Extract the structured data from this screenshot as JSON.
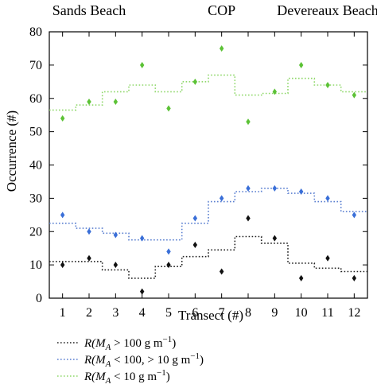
{
  "chart_data": {
    "type": "scatter",
    "xlabel": "Transect (#)",
    "ylabel": "Occurrence (#)",
    "xlim": [
      0.5,
      12.5
    ],
    "ylim": [
      0,
      80
    ],
    "xticks": [
      1,
      2,
      3,
      4,
      5,
      6,
      7,
      8,
      9,
      10,
      11,
      12
    ],
    "yticks": [
      0,
      10,
      20,
      30,
      40,
      50,
      60,
      70,
      80
    ],
    "grid": false,
    "annotations": [
      {
        "text": "Sands Beach",
        "x": 2
      },
      {
        "text": "COP",
        "x": 7
      },
      {
        "text": "Devereaux Beach",
        "x": 11
      }
    ],
    "points": [
      {
        "color": "#111111",
        "x": [
          1,
          2,
          3,
          4,
          5,
          6,
          7,
          8,
          9,
          10,
          11,
          12
        ],
        "y": [
          10,
          12,
          10,
          2,
          10,
          16,
          8,
          24,
          18,
          6,
          12,
          6
        ]
      },
      {
        "color": "#3a6fd8",
        "x": [
          1,
          2,
          3,
          4,
          5,
          6,
          7,
          8,
          9,
          10,
          11,
          12
        ],
        "y": [
          25,
          20,
          19,
          18,
          14,
          24,
          30,
          33,
          33,
          32,
          30,
          25
        ]
      },
      {
        "color": "#5cc236",
        "x": [
          1,
          2,
          3,
          4,
          5,
          6,
          7,
          8,
          9,
          10,
          11,
          12
        ],
        "y": [
          54,
          59,
          59,
          70,
          57,
          65,
          75,
          53,
          62,
          70,
          64,
          61
        ]
      }
    ],
    "series": [
      {
        "name": "R(M_A > 100 g m^-1)",
        "label_parts": [
          "R(",
          "M",
          "A",
          " > 100 g m",
          "−1",
          ")"
        ],
        "color": "#222222",
        "style": "dotted-step",
        "x": [
          1,
          2,
          3,
          4,
          5,
          6,
          7,
          8,
          9,
          10,
          11,
          12
        ],
        "y": [
          11,
          11,
          8.5,
          6,
          9.5,
          12.5,
          14.5,
          18.5,
          16.5,
          10.5,
          9,
          8
        ]
      },
      {
        "name": "R(M_A < 100, > 10 g m^-1)",
        "label_parts": [
          "R(",
          "M",
          "A",
          " < 100, > 10 g m",
          "−1",
          ")"
        ],
        "color": "#5a7fd0",
        "style": "dotted-step",
        "x": [
          1,
          2,
          3,
          4,
          5,
          6,
          7,
          8,
          9,
          10,
          11,
          12
        ],
        "y": [
          22.5,
          21,
          19.5,
          17.5,
          17.5,
          22.5,
          29,
          32,
          33,
          31.5,
          29,
          26
        ]
      },
      {
        "name": "R(M_A < 10 g m^-1)",
        "label_parts": [
          "R(",
          "M",
          "A",
          " < 10 g m",
          "−1",
          ")"
        ],
        "color": "#8fd86a",
        "style": "dotted-step",
        "x": [
          1,
          2,
          3,
          4,
          5,
          6,
          7,
          8,
          9,
          10,
          11,
          12
        ],
        "y": [
          56.5,
          58,
          62,
          64,
          62,
          65,
          67,
          61,
          61.5,
          66,
          64,
          62
        ]
      }
    ]
  }
}
